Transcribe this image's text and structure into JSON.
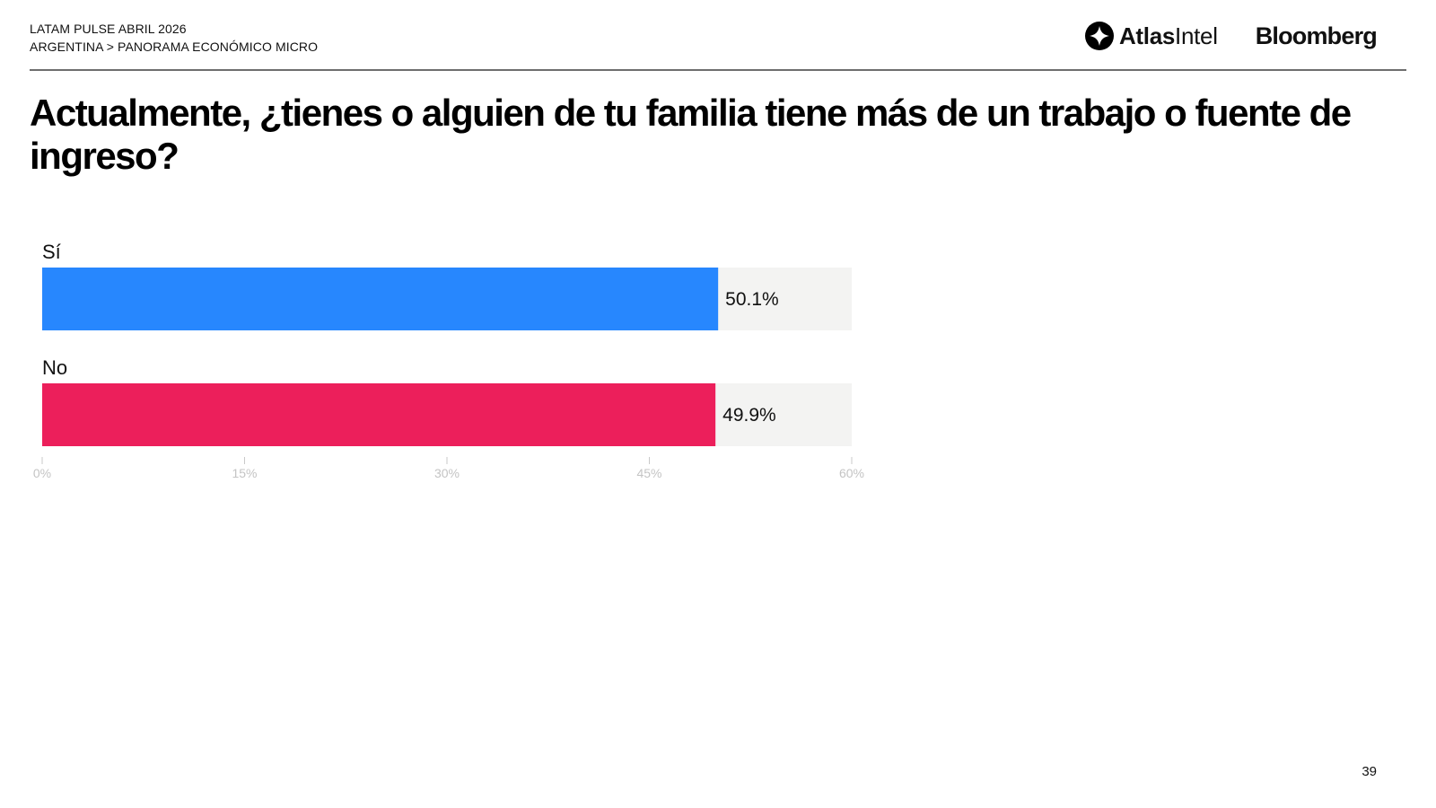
{
  "header": {
    "line1": "LATAM PULSE ABRIL 2026",
    "line2": "ARGENTINA > PANORAMA ECONÓMICO MICRO"
  },
  "logos": {
    "atlas_bold": "Atlas",
    "atlas_light": "Intel",
    "bloomberg": "Bloomberg"
  },
  "title": "Actualmente, ¿tienes o alguien de tu familia tiene más de un trabajo o fuente de ingreso?",
  "page_number": "39",
  "colors": {
    "track": "#f3f3f2",
    "tick": "#c9c9c9"
  },
  "chart_data": {
    "type": "bar",
    "orientation": "horizontal",
    "categories": [
      "Sí",
      "No"
    ],
    "values": [
      50.1,
      49.9
    ],
    "value_labels": [
      "50.1%",
      "49.9%"
    ],
    "colors": [
      "#2787fe",
      "#ec1f5b"
    ],
    "xlim": [
      0,
      60
    ],
    "ticks": [
      0,
      15,
      30,
      45,
      60
    ],
    "tick_labels": [
      "0%",
      "15%",
      "30%",
      "45%",
      "60%"
    ],
    "grid": false,
    "legend": "none"
  }
}
